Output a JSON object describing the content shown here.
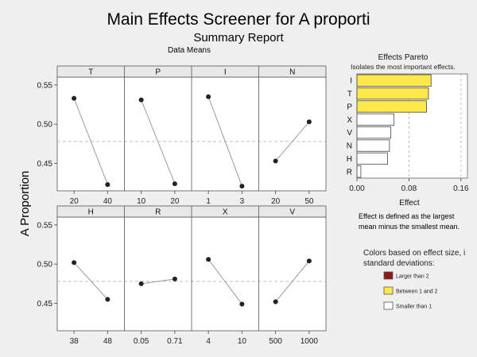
{
  "title": "Main Effects Screener for A proporti",
  "subtitle": "Summary Report",
  "panel_caption": "Data Means",
  "ylabel": "A Proportion",
  "colors": {
    "background": "#efefef",
    "panel_bg": "#ffffff",
    "line": "#9a9a9a",
    "point": "#222222",
    "mean_ref": "#bdbdbd",
    "bar_large": "#8b1a1a",
    "bar_between": "#ffe84a",
    "bar_small": "#ffffff"
  },
  "chart_data": [
    {
      "type": "line",
      "title": "Main effects panels",
      "y_ticks": [
        "0.55",
        "0.50",
        "0.45"
      ],
      "ylim": [
        0.415,
        0.56
      ],
      "grand_mean": 0.478,
      "panels": [
        {
          "factor": "T",
          "levels": [
            "20",
            "40"
          ],
          "means": [
            0.533,
            0.423
          ]
        },
        {
          "factor": "P",
          "levels": [
            "10",
            "20"
          ],
          "means": [
            0.531,
            0.424
          ]
        },
        {
          "factor": "I",
          "levels": [
            "1",
            "3"
          ],
          "means": [
            0.535,
            0.421
          ]
        },
        {
          "factor": "N",
          "levels": [
            "20",
            "50"
          ],
          "means": [
            0.453,
            0.503
          ]
        },
        {
          "factor": "H",
          "levels": [
            "38",
            "48"
          ],
          "means": [
            0.502,
            0.455
          ]
        },
        {
          "factor": "R",
          "levels": [
            "0.05",
            "0.71"
          ],
          "means": [
            0.475,
            0.481
          ]
        },
        {
          "factor": "X",
          "levels": [
            "4",
            "10"
          ],
          "means": [
            0.506,
            0.449
          ]
        },
        {
          "factor": "V",
          "levels": [
            "500",
            "1000"
          ],
          "means": [
            0.452,
            0.504
          ]
        }
      ]
    },
    {
      "type": "bar",
      "title": "Effects Pareto",
      "subtitle": "Isolates the most important effects.",
      "orientation": "horizontal",
      "categories": [
        "I",
        "T",
        "P",
        "X",
        "V",
        "N",
        "H",
        "R"
      ],
      "values": [
        0.114,
        0.11,
        0.107,
        0.057,
        0.052,
        0.05,
        0.047,
        0.006
      ],
      "bar_groups": [
        "between",
        "between",
        "between",
        "small",
        "small",
        "small",
        "small",
        "small"
      ],
      "xlabel": "Effect",
      "x_ticks": [
        "0.00",
        "0.08",
        "0.16"
      ],
      "xlim": [
        0,
        0.17
      ],
      "ref_lines": [
        0.08,
        0.16
      ]
    }
  ],
  "note": "Effect is defined as the largest mean minus the smallest mean.",
  "legend": {
    "heading": "Colors based on effect size, in standard deviations:",
    "heading_lines": [
      "Colors based on effect size, i",
      "standard deviations:"
    ],
    "items": [
      {
        "label": "Larger than 2",
        "color_key": "bar_large"
      },
      {
        "label": "Between 1 and 2",
        "color_key": "bar_between"
      },
      {
        "label": "Smaller than 1",
        "color_key": "bar_small"
      }
    ]
  }
}
